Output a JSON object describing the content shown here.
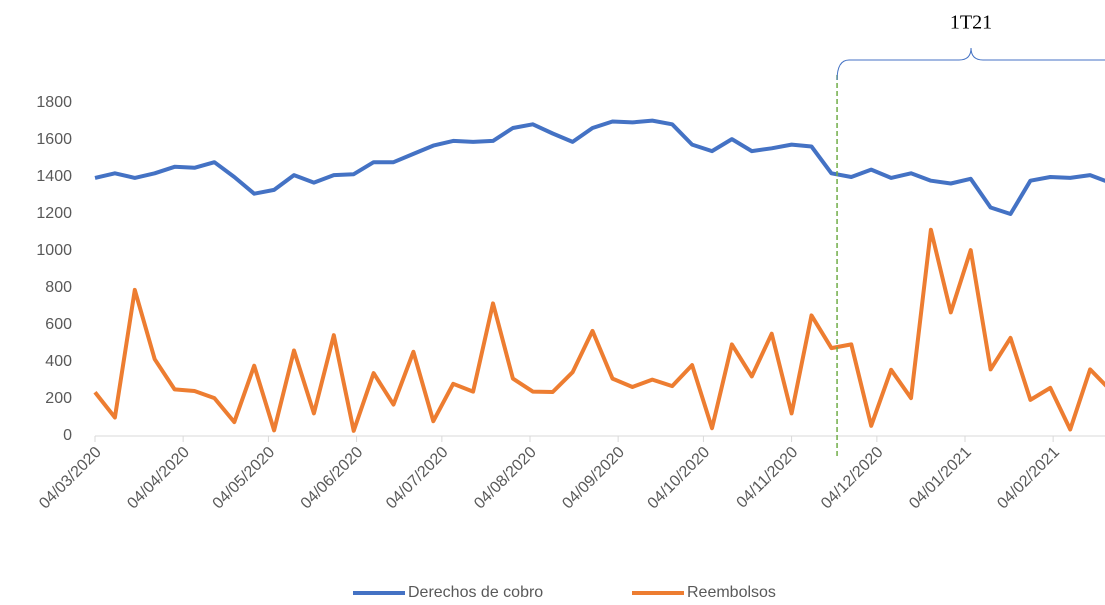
{
  "chart_data": {
    "type": "line",
    "x": [
      "2020-03-04",
      "2020-03-11",
      "2020-03-18",
      "2020-03-25",
      "2020-04-01",
      "2020-04-08",
      "2020-04-15",
      "2020-04-22",
      "2020-04-29",
      "2020-05-06",
      "2020-05-13",
      "2020-05-20",
      "2020-05-27",
      "2020-06-03",
      "2020-06-10",
      "2020-06-17",
      "2020-06-24",
      "2020-07-01",
      "2020-07-08",
      "2020-07-15",
      "2020-07-22",
      "2020-07-29",
      "2020-08-05",
      "2020-08-12",
      "2020-08-19",
      "2020-08-26",
      "2020-09-02",
      "2020-09-09",
      "2020-09-16",
      "2020-09-23",
      "2020-09-30",
      "2020-10-07",
      "2020-10-14",
      "2020-10-21",
      "2020-10-28",
      "2020-11-04",
      "2020-11-11",
      "2020-11-18",
      "2020-11-25",
      "2020-12-02",
      "2020-12-09",
      "2020-12-16",
      "2020-12-23",
      "2020-12-30",
      "2021-01-06",
      "2021-01-13",
      "2021-01-20",
      "2021-01-27",
      "2021-02-03",
      "2021-02-10",
      "2021-02-17",
      "2021-02-24"
    ],
    "series": [
      {
        "name": "Derechos de cobro",
        "color": "#4472c4",
        "values": [
          1395,
          1420,
          1395,
          1420,
          1455,
          1450,
          1480,
          1400,
          1310,
          1330,
          1410,
          1370,
          1410,
          1415,
          1480,
          1480,
          1525,
          1570,
          1595,
          1590,
          1595,
          1665,
          1685,
          1635,
          1590,
          1665,
          1700,
          1695,
          1705,
          1685,
          1575,
          1540,
          1605,
          1540,
          1555,
          1575,
          1565,
          1420,
          1400,
          1440,
          1395,
          1420,
          1380,
          1365,
          1390,
          1235,
          1200,
          1380,
          1400,
          1395,
          1410,
          1370
        ]
      },
      {
        "name": "Reembolsos",
        "color": "#ed7d31",
        "values": [
          236,
          100,
          790,
          415,
          252,
          243,
          205,
          75,
          380,
          30,
          462,
          122,
          545,
          28,
          340,
          170,
          455,
          80,
          282,
          240,
          717,
          310,
          240,
          238,
          345,
          568,
          310,
          265,
          305,
          270,
          383,
          42,
          495,
          322,
          553,
          122,
          652,
          475,
          495,
          55,
          358,
          205,
          1115,
          668,
          1005,
          360,
          530,
          195,
          260,
          35,
          360,
          250
        ]
      }
    ],
    "xlim": [
      "2020-03-04",
      "2021-02-24"
    ],
    "xticks": [
      {
        "value": "2020-03-04",
        "label": "04/03/2020"
      },
      {
        "value": "2020-04-04",
        "label": "04/04/2020"
      },
      {
        "value": "2020-05-04",
        "label": "04/05/2020"
      },
      {
        "value": "2020-06-04",
        "label": "04/06/2020"
      },
      {
        "value": "2020-07-04",
        "label": "04/07/2020"
      },
      {
        "value": "2020-08-04",
        "label": "04/08/2020"
      },
      {
        "value": "2020-09-04",
        "label": "04/09/2020"
      },
      {
        "value": "2020-10-04",
        "label": "04/10/2020"
      },
      {
        "value": "2020-11-04",
        "label": "04/11/2020"
      },
      {
        "value": "2020-12-04",
        "label": "04/12/2020"
      },
      {
        "value": "2021-01-04",
        "label": "04/01/2021"
      },
      {
        "value": "2021-02-04",
        "label": "04/02/2021"
      }
    ],
    "ylim": [
      0,
      1800
    ],
    "yticks": [
      0,
      200,
      400,
      600,
      800,
      1000,
      1200,
      1400,
      1600,
      1800
    ],
    "marker_line": {
      "x": "2020-11-20",
      "color": "#70ad47",
      "label": "1T21"
    }
  }
}
